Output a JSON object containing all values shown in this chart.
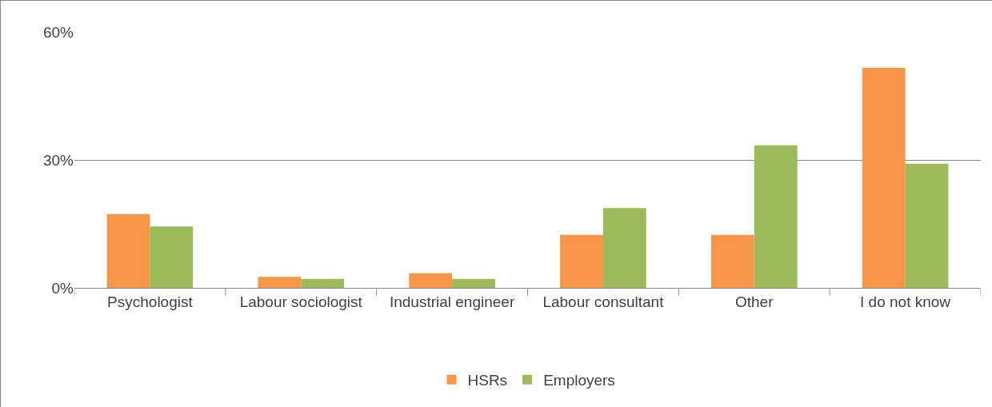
{
  "chart_data": {
    "type": "bar",
    "categories": [
      "Psychologist",
      "Labour sociologist",
      "Industrial engineer",
      "Labour consultant",
      "Other",
      "I do not know"
    ],
    "series": [
      {
        "name": "HSRs",
        "color": "#f79646",
        "values": [
          17.3,
          2.6,
          3.4,
          12.4,
          12.4,
          51.6
        ]
      },
      {
        "name": "Employers",
        "color": "#9bbb59",
        "values": [
          14.4,
          2.1,
          2.1,
          18.7,
          33.4,
          29.1
        ]
      }
    ],
    "ylim": [
      0,
      60
    ],
    "yticks": [
      {
        "value": 0,
        "label": "0%"
      },
      {
        "value": 30,
        "label": "30%"
      },
      {
        "value": 60,
        "label": "60%"
      }
    ],
    "grid": "y",
    "legend": "bottom"
  }
}
